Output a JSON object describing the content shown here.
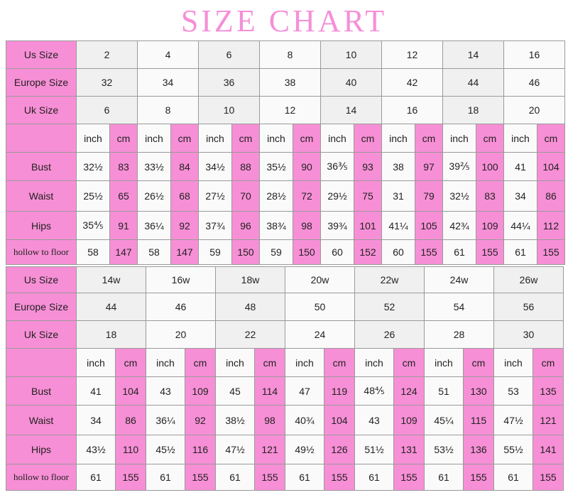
{
  "title": "SIZE CHART",
  "tables": [
    {
      "size_rows": [
        {
          "label": "Us Size",
          "values": [
            "2",
            "4",
            "6",
            "8",
            "10",
            "12",
            "14",
            "16"
          ]
        },
        {
          "label": "Europe Size",
          "values": [
            "32",
            "34",
            "36",
            "38",
            "40",
            "42",
            "44",
            "46"
          ]
        },
        {
          "label": "Uk Size",
          "values": [
            "6",
            "8",
            "10",
            "12",
            "14",
            "16",
            "18",
            "20"
          ]
        }
      ],
      "unit_labels": [
        "inch",
        "cm"
      ],
      "measure_rows": [
        {
          "label": "Bust",
          "values": [
            [
              "32½",
              "83"
            ],
            [
              "33½",
              "84"
            ],
            [
              "34½",
              "88"
            ],
            [
              "35½",
              "90"
            ],
            [
              "36⅗",
              "93"
            ],
            [
              "38",
              "97"
            ],
            [
              "39⅖",
              "100"
            ],
            [
              "41",
              "104"
            ]
          ]
        },
        {
          "label": "Waist",
          "values": [
            [
              "25½",
              "65"
            ],
            [
              "26½",
              "68"
            ],
            [
              "27½",
              "70"
            ],
            [
              "28½",
              "72"
            ],
            [
              "29½",
              "75"
            ],
            [
              "31",
              "79"
            ],
            [
              "32½",
              "83"
            ],
            [
              "34",
              "86"
            ]
          ]
        },
        {
          "label": "Hips",
          "values": [
            [
              "35⅘",
              "91"
            ],
            [
              "36¼",
              "92"
            ],
            [
              "37¾",
              "96"
            ],
            [
              "38¾",
              "98"
            ],
            [
              "39¾",
              "101"
            ],
            [
              "41¼",
              "105"
            ],
            [
              "42¾",
              "109"
            ],
            [
              "44¼",
              "112"
            ]
          ]
        },
        {
          "label": "hollow to floor",
          "values": [
            [
              "58",
              "147"
            ],
            [
              "58",
              "147"
            ],
            [
              "59",
              "150"
            ],
            [
              "59",
              "150"
            ],
            [
              "60",
              "152"
            ],
            [
              "60",
              "155"
            ],
            [
              "61",
              "155"
            ],
            [
              "61",
              "155"
            ]
          ]
        }
      ]
    },
    {
      "size_rows": [
        {
          "label": "Us Size",
          "values": [
            "14w",
            "16w",
            "18w",
            "20w",
            "22w",
            "24w",
            "26w"
          ]
        },
        {
          "label": "Europe Size",
          "values": [
            "44",
            "46",
            "48",
            "50",
            "52",
            "54",
            "56"
          ]
        },
        {
          "label": "Uk Size",
          "values": [
            "18",
            "20",
            "22",
            "24",
            "26",
            "28",
            "30"
          ]
        }
      ],
      "unit_labels": [
        "inch",
        "cm"
      ],
      "measure_rows": [
        {
          "label": "Bust",
          "values": [
            [
              "41",
              "104"
            ],
            [
              "43",
              "109"
            ],
            [
              "45",
              "114"
            ],
            [
              "47",
              "119"
            ],
            [
              "48⅘",
              "124"
            ],
            [
              "51",
              "130"
            ],
            [
              "53",
              "135"
            ]
          ]
        },
        {
          "label": "Waist",
          "values": [
            [
              "34",
              "86"
            ],
            [
              "36¼",
              "92"
            ],
            [
              "38½",
              "98"
            ],
            [
              "40¾",
              "104"
            ],
            [
              "43",
              "109"
            ],
            [
              "45¼",
              "115"
            ],
            [
              "47½",
              "121"
            ]
          ]
        },
        {
          "label": "Hips",
          "values": [
            [
              "43½",
              "110"
            ],
            [
              "45½",
              "116"
            ],
            [
              "47½",
              "121"
            ],
            [
              "49½",
              "126"
            ],
            [
              "51½",
              "131"
            ],
            [
              "53½",
              "136"
            ],
            [
              "55½",
              "141"
            ]
          ]
        },
        {
          "label": "hollow to floor",
          "values": [
            [
              "61",
              "155"
            ],
            [
              "61",
              "155"
            ],
            [
              "61",
              "155"
            ],
            [
              "61",
              "155"
            ],
            [
              "61",
              "155"
            ],
            [
              "61",
              "155"
            ],
            [
              "61",
              "155"
            ]
          ]
        }
      ]
    }
  ]
}
